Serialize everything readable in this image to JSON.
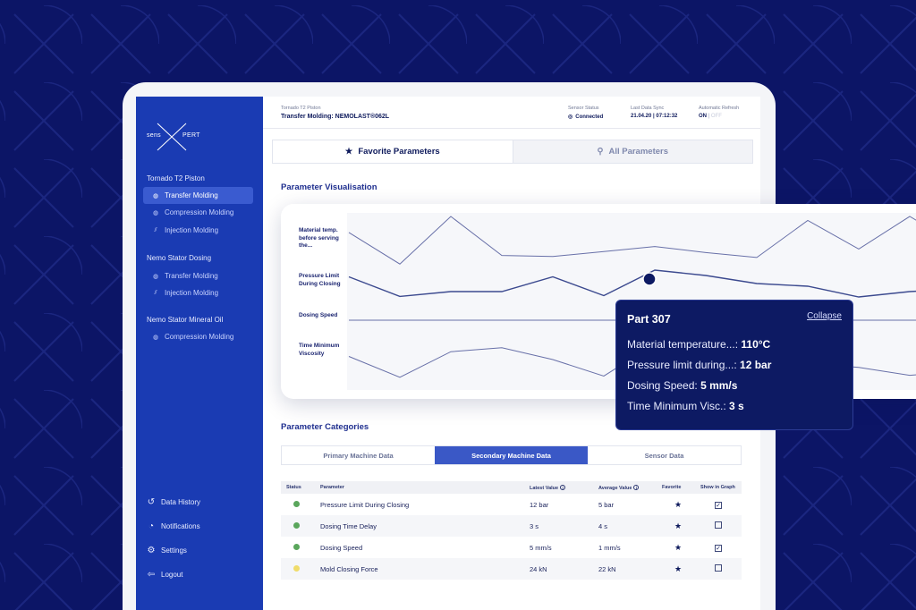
{
  "sidebar": {
    "logo_left": "sens",
    "logo_right": "PERT",
    "groups": [
      {
        "title": "Tornado T2 Piston",
        "items": [
          "Transfer Molding",
          "Compression Molding",
          "Injection Molding"
        ]
      },
      {
        "title": "Nemo Stator Dosing",
        "items": [
          "Transfer Molding",
          "Injection Molding"
        ]
      },
      {
        "title": "Nemo Stator Mineral Oil",
        "items": [
          "Compression Molding"
        ]
      }
    ],
    "bottom": [
      "Data History",
      "Notifications",
      "Settings",
      "Logout"
    ]
  },
  "header": {
    "subtitle": "Tornado T2 Piston",
    "title": "Transfer Molding: NEMOLAST®062L",
    "sensor_status_label": "Sensor Status",
    "sensor_status_value": "Connected",
    "last_sync_label": "Last Data Sync",
    "last_sync_value": "21.04.20 | 07:12:32",
    "auto_refresh_label": "Automatic Refresh",
    "auto_refresh_on": "ON",
    "auto_refresh_sep": "|",
    "auto_refresh_off": "OFF"
  },
  "tabs": [
    "Favorite Parameters",
    "All Parameters"
  ],
  "visualisation": {
    "heading": "Parameter Visualisation",
    "series_labels": [
      "Material temp. before serving the...",
      "Pressure Limit During Closing",
      "Dosing Speed",
      "Time Minimum Viscosity"
    ]
  },
  "chart_data": {
    "type": "line",
    "title": "",
    "xlabel": "",
    "ylabel": "",
    "x": [
      1,
      2,
      3,
      4,
      5,
      6,
      7,
      8,
      9,
      10,
      11,
      12,
      13,
      14
    ],
    "series": [
      {
        "name": "Material temp. before serving the...",
        "values": [
          0.68,
          0.05,
          1.0,
          0.22,
          0.2,
          0.3,
          0.4,
          0.28,
          0.18,
          0.92,
          0.35,
          1.0,
          0.4,
          0.0
        ]
      },
      {
        "name": "Pressure Limit During Closing",
        "values": [
          0.75,
          0.02,
          0.2,
          0.2,
          0.75,
          0.05,
          1.0,
          0.8,
          0.5,
          0.4,
          0.0,
          0.2,
          0.3,
          0.4
        ]
      },
      {
        "name": "Dosing Speed",
        "values": [
          0.5,
          0.5,
          0.5,
          0.5,
          0.5,
          0.5,
          0.5,
          0.5,
          0.5,
          0.5,
          0.5,
          0.5,
          0.5,
          0.5
        ]
      },
      {
        "name": "Time Minimum Viscosity",
        "values": [
          0.58,
          0.05,
          0.7,
          0.8,
          0.5,
          0.08,
          0.9,
          1.0,
          0.7,
          0.4,
          0.3,
          0.1,
          0.2,
          0.5
        ]
      }
    ],
    "highlight": {
      "series": "Pressure Limit During Closing",
      "x": 7
    }
  },
  "tooltip": {
    "title": "Part 307",
    "collapse": "Collapse",
    "rows": [
      {
        "label": "Material temperature...: ",
        "value": "110°C"
      },
      {
        "label": "Pressure limit during...: ",
        "value": "12 bar"
      },
      {
        "label": "Dosing Speed: ",
        "value": "5 mm/s"
      },
      {
        "label": "Time Minimum Visc.: ",
        "value": "3 s"
      }
    ]
  },
  "categories": {
    "heading": "Parameter Categories",
    "tabs": [
      "Primary Machine Data",
      "Secondary Machine Data",
      "Sensor Data"
    ]
  },
  "table": {
    "headers": [
      "Status",
      "Parameter",
      "Latest Value",
      "Average Value",
      "Favorite",
      "Show in Graph"
    ],
    "rows": [
      {
        "status": "#5aa65c",
        "parameter": "Pressure Limit During Closing",
        "latest": "12 bar",
        "average": "5 bar",
        "checked": "✓"
      },
      {
        "status": "#5aa65c",
        "parameter": "Dosing Time Delay",
        "latest": "3 s",
        "average": "4 s",
        "checked": ""
      },
      {
        "status": "#5aa65c",
        "parameter": "Dosing Speed",
        "latest": "5 mm/s",
        "average": "1 mm/s",
        "checked": "✓"
      },
      {
        "status": "#f0dc6a",
        "parameter": "Mold Closing Force",
        "latest": "24 kN",
        "average": "22 kN",
        "checked": ""
      }
    ]
  },
  "colors": {
    "accent": "#1a3bb3",
    "navy": "#0c1566",
    "tooltip": "#0d1a63"
  }
}
